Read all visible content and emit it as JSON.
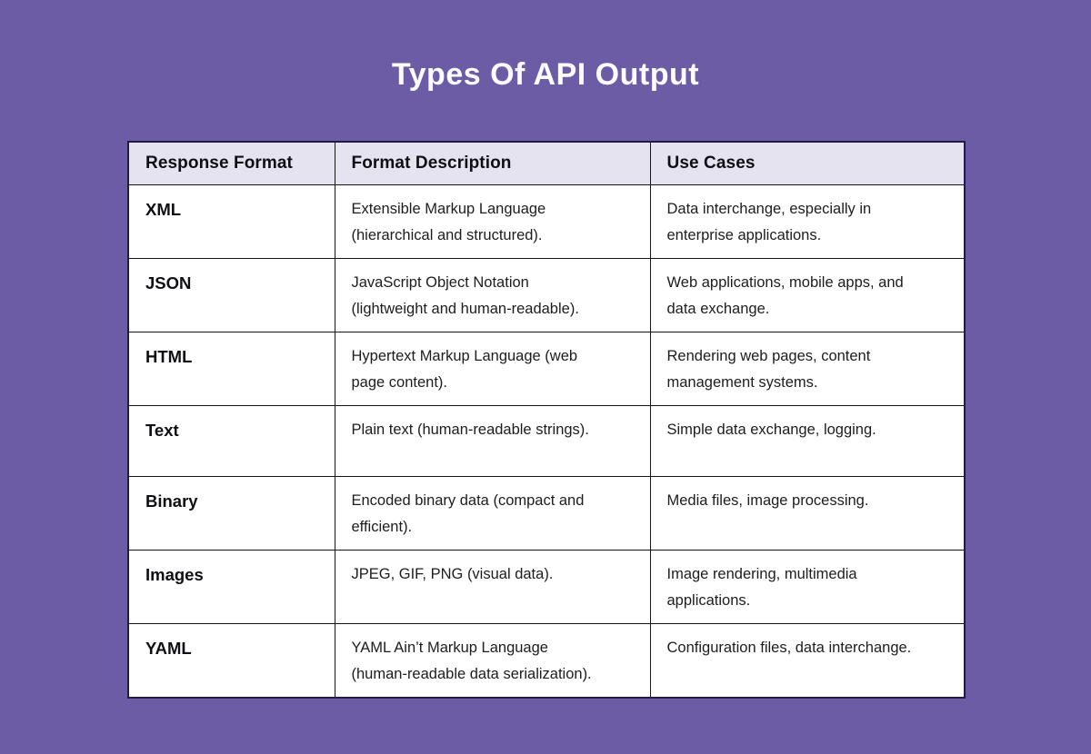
{
  "colors": {
    "background": "#6C5CA6",
    "header_bg": "#E6E3F1",
    "border_outer": "#221A47",
    "border_inner": "#161616",
    "title_text": "#FCFBFF",
    "body_text": "#1D1D1D"
  },
  "chart_data": {
    "type": "table",
    "title": "Types Of API Output",
    "columns": [
      "Response Format",
      "Format Description",
      "Use Cases"
    ],
    "rows": [
      {
        "format": "XML",
        "description": "Extensible Markup Language (hierarchical and structured).",
        "use_cases": "Data interchange, especially in enterprise applications."
      },
      {
        "format": "JSON",
        "description": "JavaScript Object Notation (lightweight and human-readable).",
        "use_cases": "Web applications, mobile apps, and data exchange."
      },
      {
        "format": "HTML",
        "description": "Hypertext Markup Language (web page content).",
        "use_cases": "Rendering web pages, content management systems."
      },
      {
        "format": "Text",
        "description": "Plain text (human-readable strings).",
        "use_cases": "Simple data exchange, logging."
      },
      {
        "format": "Binary",
        "description": "Encoded binary data (compact and efficient).",
        "use_cases": "Media files, image processing."
      },
      {
        "format": "Images",
        "description": "JPEG, GIF, PNG (visual data).",
        "use_cases": "Image rendering, multimedia applications."
      },
      {
        "format": "YAML",
        "description": "YAML Ain’t Markup Language (human-readable data serialization).",
        "use_cases": "Configuration files, data interchange."
      }
    ]
  }
}
